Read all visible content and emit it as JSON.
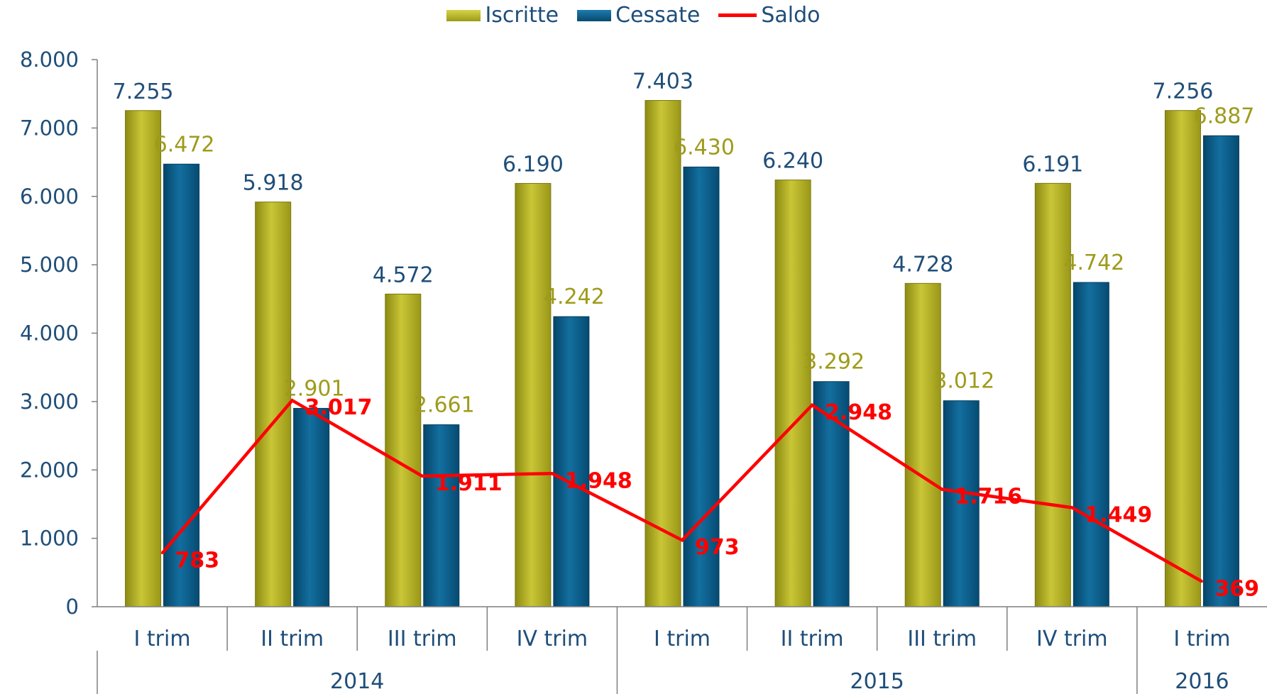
{
  "chart_data": {
    "type": "bar",
    "categories": [
      "I trim",
      "II trim",
      "III trim",
      "IV trim",
      "I trim",
      "II trim",
      "III trim",
      "IV trim",
      "I trim"
    ],
    "groups": [
      {
        "label": "2014",
        "span": 4
      },
      {
        "label": "2015",
        "span": 4
      },
      {
        "label": "2016",
        "span": 1
      }
    ],
    "series": [
      {
        "name": "Iscritte",
        "kind": "bar",
        "color": "#b5b320",
        "values": [
          7255,
          5918,
          4572,
          6190,
          7403,
          6240,
          4728,
          6191,
          7256
        ],
        "labels": [
          "7.255",
          "5.918",
          "4.572",
          "6.190",
          "7.403",
          "6.240",
          "4.728",
          "6.191",
          "7.256"
        ]
      },
      {
        "name": "Cessate",
        "kind": "bar",
        "color": "#0b5f8c",
        "values": [
          6472,
          2901,
          2661,
          4242,
          6430,
          3292,
          3012,
          4742,
          6887
        ],
        "labels": [
          "6.472",
          "2.901",
          "2.661",
          "4.242",
          "6.430",
          "3.292",
          "3.012",
          "4.742",
          "6.887"
        ]
      },
      {
        "name": "Saldo",
        "kind": "line",
        "color": "#ff0000",
        "values": [
          783,
          3017,
          1911,
          1948,
          973,
          2948,
          1716,
          1449,
          369
        ],
        "labels": [
          "783",
          "3.017",
          "1.911",
          "1.948",
          "973",
          "2.948",
          "1.716",
          "1.449",
          "369"
        ]
      }
    ],
    "ylim": [
      0,
      8000
    ],
    "yticks": [
      0,
      1000,
      2000,
      3000,
      4000,
      5000,
      6000,
      7000,
      8000
    ],
    "ytick_labels": [
      "0",
      "1.000",
      "2.000",
      "3.000",
      "4.000",
      "5.000",
      "6.000",
      "7.000",
      "8.000"
    ],
    "grid": false,
    "legend_position": "top-center",
    "label_colors": {
      "iscritte_labels": "#1f4e79",
      "cessate_labels": "#9e9b1a",
      "axis_text": "#1f4e79"
    }
  }
}
